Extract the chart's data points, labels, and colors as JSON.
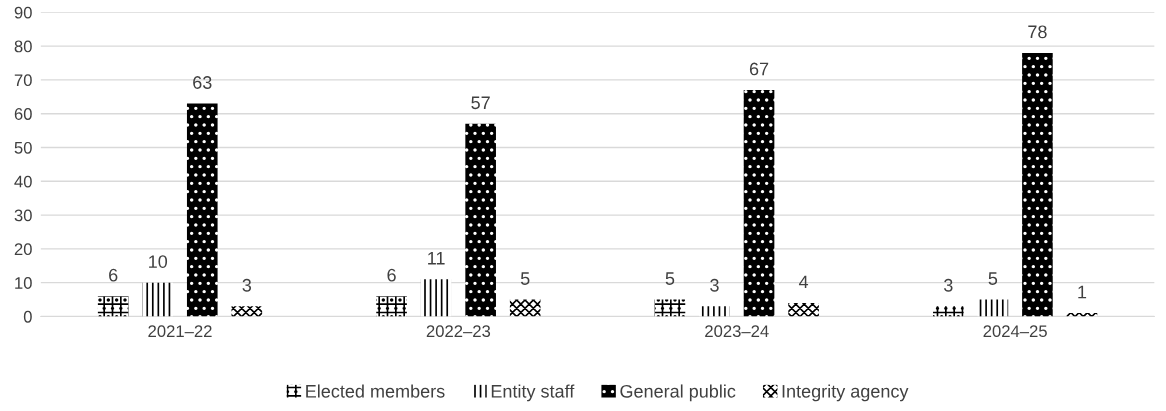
{
  "chart_data": {
    "type": "bar",
    "categories": [
      "2021–22",
      "2022–23",
      "2023–24",
      "2024–25"
    ],
    "series": [
      {
        "name": "Elected members",
        "color": "#000000",
        "values": [
          6,
          6,
          5,
          3
        ]
      },
      {
        "name": "Entity staff",
        "color": "#000000",
        "values": [
          10,
          11,
          3,
          5
        ]
      },
      {
        "name": "General public",
        "color": "#000000",
        "values": [
          63,
          57,
          67,
          78
        ]
      },
      {
        "name": "Integrity agency",
        "color": "#000000",
        "values": [
          3,
          5,
          4,
          1
        ]
      }
    ],
    "ylim": [
      0,
      90
    ],
    "yticks": [
      0,
      10,
      20,
      30,
      40,
      50,
      60,
      70,
      80,
      90
    ],
    "grid": "y",
    "legend": "bottom",
    "data_labels": true
  }
}
